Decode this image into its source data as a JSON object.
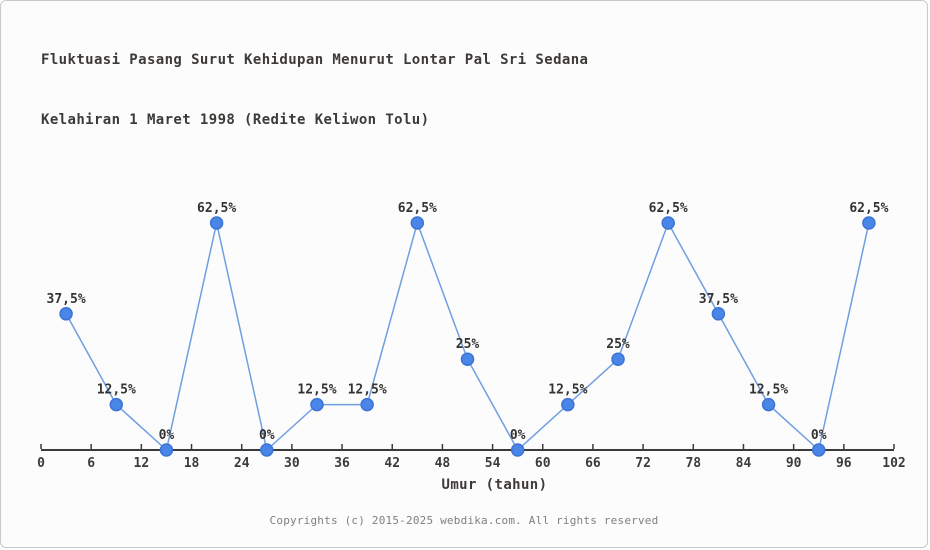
{
  "page": {
    "title_line1": "Fluktuasi Pasang Surut Kehidupan Menurut Lontar Pal Sri Sedana",
    "title_line2": "Kelahiran 1 Maret 1998 (Redite Keliwon Tolu)",
    "footer": "Copyrights (c) 2015-2025 webdika.com. All rights reserved"
  },
  "chart_data": {
    "type": "line",
    "title": "Fluktuasi Pasang Surut Kehidupan Menurut Lontar Pal Sri Sedana Kelahiran 1 Maret 1998 (Redite Keliwon Tolu)",
    "xlabel": "Umur (tahun)",
    "ylabel": "",
    "x": [
      3,
      9,
      15,
      21,
      27,
      33,
      39,
      45,
      51,
      57,
      63,
      69,
      75,
      81,
      87,
      93,
      99
    ],
    "values": [
      37.5,
      12.5,
      0,
      62.5,
      0,
      12.5,
      12.5,
      62.5,
      25,
      0,
      12.5,
      25,
      62.5,
      37.5,
      12.5,
      0,
      62.5
    ],
    "point_labels": [
      "37,5%",
      "12,5%",
      "0%",
      "62,5%",
      "0%",
      "12,5%",
      "12,5%",
      "62,5%",
      "25%",
      "0%",
      "12,5%",
      "25%",
      "62,5%",
      "37,5%",
      "12,5%",
      "0%",
      "62,5%"
    ],
    "x_ticks": [
      0,
      6,
      12,
      18,
      24,
      30,
      36,
      42,
      48,
      54,
      60,
      66,
      72,
      78,
      84,
      90,
      96,
      102
    ],
    "xlim": [
      0,
      102
    ],
    "ylim": [
      0,
      70
    ],
    "grid": false,
    "legend_position": "none",
    "colors": {
      "line": "#6f9fe0",
      "marker_fill": "#4a86e8",
      "marker_stroke": "#3b74d4",
      "axis": "#3a3a3a",
      "tick_label": "#3d3a38",
      "point_label": "#333333"
    }
  }
}
